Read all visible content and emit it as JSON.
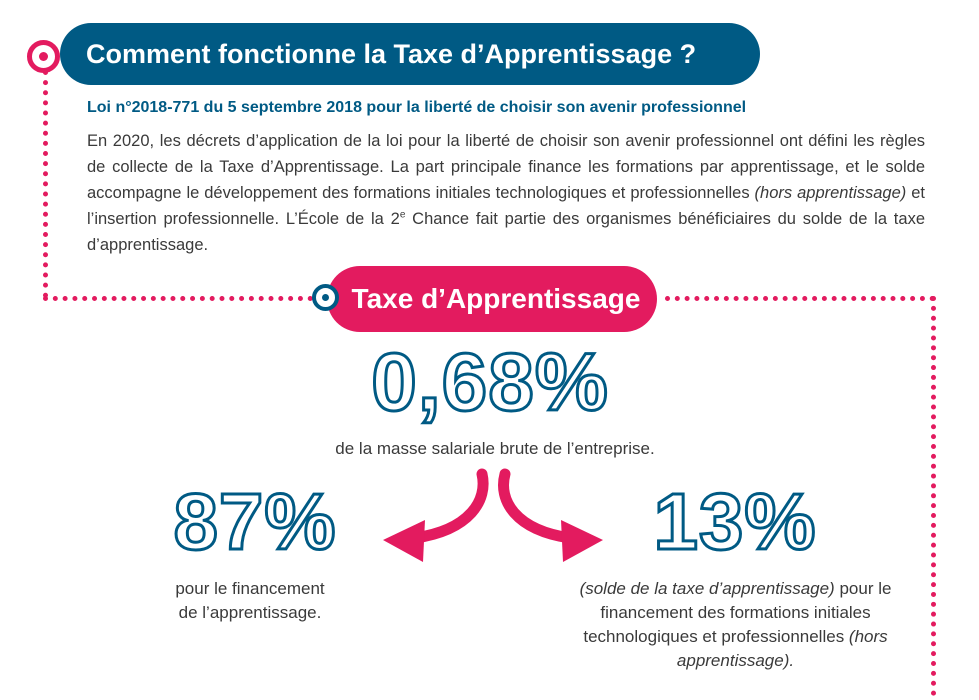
{
  "header": {
    "title": "Comment fonctionne la Taxe d’Apprentissage ?",
    "law": "Loi n°2018-771 du 5 septembre 2018 pour la liberté de choisir son avenir professionnel"
  },
  "intro": {
    "text_before_italic": "En 2020, les décrets d’application de la loi pour la liberté de choisir son avenir professionnel ont défini les règles de collecte de la Taxe d’Apprentissage. La part principale finance les formations par apprentissage, et le solde accompagne le développement des formations initiales technologiques et professionnelles ",
    "italic": "(hors apprentissage)",
    "text_after_italic": " et l’insertion professionnelle. L’École de la 2",
    "superscript": "e",
    "text_end": " Chance fait partie des organismes bénéficiaires du solde de la taxe d’apprentissage."
  },
  "taxe": {
    "label": "Taxe d’Apprentissage",
    "total_rate": "0,68%",
    "total_caption": "de la masse salariale brute de l’entreprise."
  },
  "split_left": {
    "rate": "87%",
    "caption_line1": "pour le financement",
    "caption_line2": "de l’apprentissage."
  },
  "split_right": {
    "rate": "13%",
    "caption_italic": "(solde de la taxe d’apprentissage)",
    "caption_rest": " pour le financement des formations initiales technologiques et professionnelles ",
    "caption_italic_end": "(hors apprentissage)."
  },
  "colors": {
    "blue": "#005a84",
    "pink": "#e31b5f",
    "text": "#3a3a3a"
  }
}
